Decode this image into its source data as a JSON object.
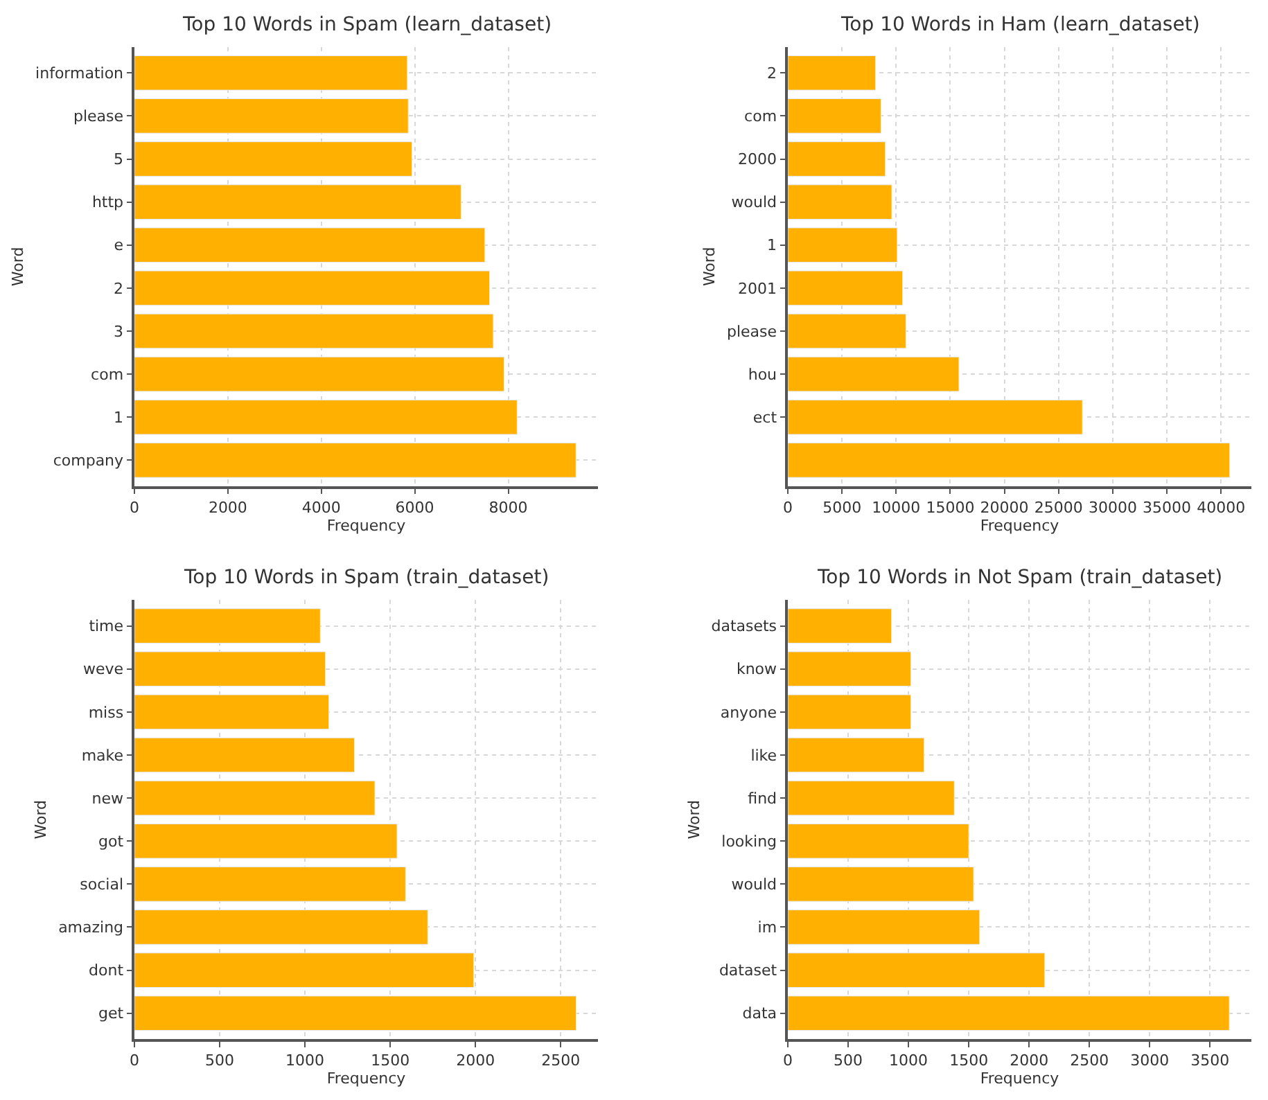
{
  "chart_data": [
    {
      "type": "bar",
      "orientation": "horizontal",
      "title": "Top 10 Words in Spam (learn_dataset)",
      "xlabel": "Frequency",
      "ylabel": "Word",
      "categories": [
        "information",
        "please",
        "5",
        "http",
        "e",
        "2",
        "3",
        "com",
        "1",
        "company"
      ],
      "values": [
        5840,
        5860,
        5940,
        6990,
        7500,
        7600,
        7680,
        7910,
        8190,
        9450
      ],
      "color": "#ffb000",
      "xlim": [
        0,
        9920
      ],
      "xticks": [
        0,
        2000,
        4000,
        6000,
        8000
      ],
      "grid": true
    },
    {
      "type": "bar",
      "orientation": "horizontal",
      "title": "Top 10 Words in Ham (learn_dataset)",
      "xlabel": "Frequency",
      "ylabel": "Word",
      "categories": [
        "2",
        "com",
        "2000",
        "would",
        "1",
        "2001",
        "please",
        "hou",
        "ect",
        null
      ],
      "values": [
        8100,
        8600,
        9000,
        9600,
        10100,
        10600,
        10900,
        15800,
        27200,
        40800
      ],
      "color": "#ffb000",
      "xlim": [
        0,
        42800
      ],
      "xticks": [
        0,
        5000,
        10000,
        15000,
        20000,
        25000,
        30000,
        35000,
        40000
      ],
      "grid": true
    },
    {
      "type": "bar",
      "orientation": "horizontal",
      "title": "Top 10 Words in Spam (train_dataset)",
      "xlabel": "Frequency",
      "ylabel": "Word",
      "categories": [
        "time",
        "weve",
        "miss",
        "make",
        "new",
        "got",
        "social",
        "amazing",
        "dont",
        "get"
      ],
      "values": [
        1090,
        1120,
        1140,
        1290,
        1410,
        1540,
        1590,
        1720,
        1990,
        2590
      ],
      "color": "#ffb000",
      "xlim": [
        0,
        2718
      ],
      "xticks": [
        0,
        500,
        1000,
        1500,
        2000,
        2500
      ],
      "grid": true
    },
    {
      "type": "bar",
      "orientation": "horizontal",
      "title": "Top 10 Words in Not Spam (train_dataset)",
      "xlabel": "Frequency",
      "ylabel": "Word",
      "categories": [
        "datasets",
        "know",
        "anyone",
        "like",
        "find",
        "looking",
        "would",
        "im",
        "dataset",
        "data"
      ],
      "values": [
        860,
        1020,
        1020,
        1130,
        1380,
        1500,
        1540,
        1590,
        2130,
        3660
      ],
      "color": "#ffb000",
      "xlim": [
        0,
        3843
      ],
      "xticks": [
        0,
        500,
        1000,
        1500,
        2000,
        2500,
        3000,
        3500
      ],
      "grid": true
    }
  ]
}
